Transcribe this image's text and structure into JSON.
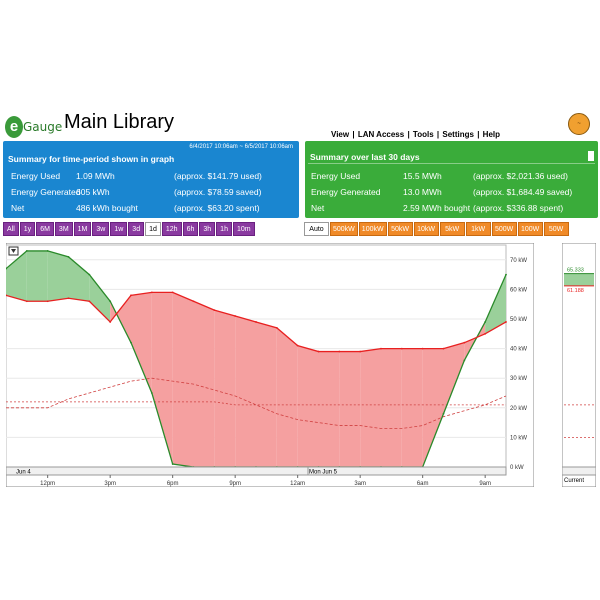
{
  "app": {
    "logo_letter": "e",
    "logo_text": "Gauge",
    "title": "Main Library",
    "user_badge": "~"
  },
  "nav": {
    "view": "View",
    "lan_access": "LAN Access",
    "tools": "Tools",
    "settings": "Settings",
    "help": "Help",
    "separator": "|"
  },
  "summary_period": {
    "range": "6/4/2017 10:06am ~ 6/5/2017 10:06am",
    "title": "Summary for time-period shown in graph",
    "rows": [
      {
        "label": "Energy Used",
        "value": "1.09 MWh",
        "note": "(approx. $141.79 used)"
      },
      {
        "label": "Energy Generated",
        "value": "605 kWh",
        "note": "(approx. $78.59 saved)"
      },
      {
        "label": "Net",
        "value": "486 kWh bought",
        "note": "(approx. $63.20 spent)"
      }
    ],
    "color": "#1a86d0"
  },
  "summary_30": {
    "title": "Summary over last 30 days",
    "rows": [
      {
        "label": "Energy Used",
        "value": "15.5 MWh",
        "note": "(approx. $2,021.36 used)"
      },
      {
        "label": "Energy Generated",
        "value": "13.0 MWh",
        "note": "(approx. $1,684.49 saved)"
      },
      {
        "label": "Net",
        "value": "2.59 MWh bought",
        "note": "(approx. $336.88 spent)"
      }
    ],
    "color": "#3aac3a"
  },
  "time_buttons": [
    "All",
    "1y",
    "6M",
    "3M",
    "1M",
    "3w",
    "1w",
    "3d",
    "1d",
    "12h",
    "6h",
    "3h",
    "1h",
    "10m"
  ],
  "time_active": "1d",
  "scale_buttons": [
    "Auto",
    "500kW",
    "100kW",
    "50kW",
    "10kW",
    "5kW",
    "1kW",
    "500W",
    "100W",
    "50W"
  ],
  "scale_active": "Auto",
  "chart": {
    "y_ticks": [
      "0 kW",
      "10 kW",
      "20 kW",
      "30 kW",
      "40 kW",
      "50 kW",
      "60 kW",
      "70 kW"
    ],
    "x_ticks": [
      "12pm",
      "3pm",
      "6pm",
      "9pm",
      "12am",
      "3am",
      "6am",
      "9am"
    ],
    "date_left": "Jun 4",
    "date_mid": "Mon Jun 5",
    "current_label": "Current",
    "current_gen": "65.333",
    "current_use": "61.188",
    "colors": {
      "use": "#e82020",
      "gen": "#2a8a2a",
      "use_fill": "#f5a0a0",
      "gen_fill": "#9ad09a"
    }
  },
  "chart_data": {
    "type": "area",
    "title": "",
    "xlabel": "",
    "ylabel": "",
    "x": [
      "10:06am",
      "11am",
      "12pm",
      "1pm",
      "2pm",
      "3pm",
      "4pm",
      "5pm",
      "6pm",
      "7pm",
      "8pm",
      "9pm",
      "10pm",
      "11pm",
      "12am",
      "1am",
      "2am",
      "3am",
      "4am",
      "5am",
      "6am",
      "7am",
      "8am",
      "9am",
      "10am"
    ],
    "ylim": [
      0,
      75
    ],
    "y_unit": "kW",
    "series": [
      {
        "name": "",
        "color": "#e82020",
        "values": [
          58,
          56,
          56,
          57,
          56,
          49,
          58,
          59,
          59,
          56,
          53,
          51,
          49,
          47,
          41,
          39,
          39,
          39,
          40,
          40,
          40,
          40,
          42,
          45,
          49
        ]
      },
      {
        "name": "",
        "color": "#2a8a2a",
        "values": [
          67,
          73,
          73,
          71,
          65,
          56,
          42,
          25,
          1,
          0,
          0,
          0,
          0,
          0,
          0,
          0,
          0,
          0,
          0,
          0,
          0,
          18,
          36,
          49,
          65
        ]
      }
    ],
    "current": {
      "gen": 65.333,
      "use": 61.188
    }
  }
}
